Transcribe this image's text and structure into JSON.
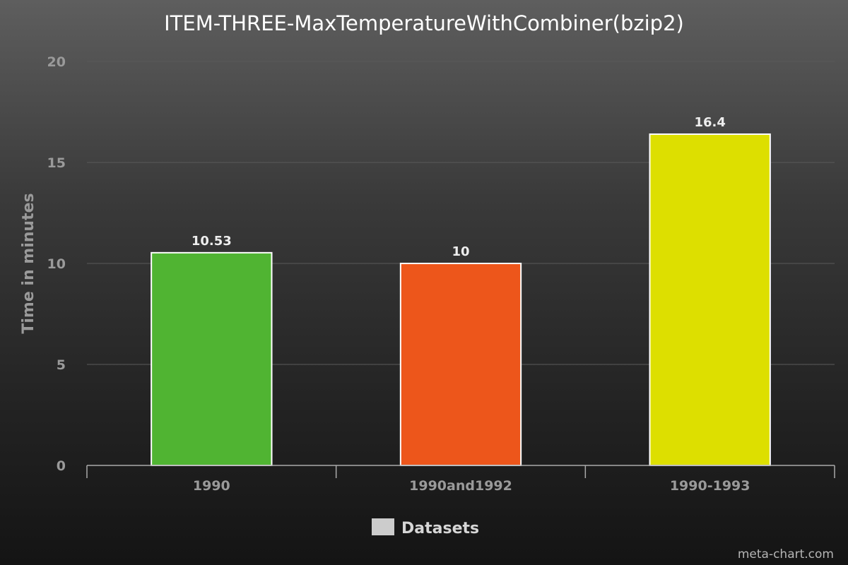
{
  "chart_data": {
    "type": "bar",
    "title": "ITEM-THREE-MaxTemperatureWithCombiner(bzip2)",
    "xlabel": "",
    "ylabel": "Time in minutes",
    "categories": [
      "1990",
      "1990and1992",
      "1990-1993"
    ],
    "series": [
      {
        "name": "Datasets",
        "values": [
          10.53,
          10,
          16.4
        ]
      }
    ],
    "data_labels": [
      "10.53",
      "10",
      "16.4"
    ],
    "bar_colors": [
      "#50b432",
      "#ed561b",
      "#dddf00"
    ],
    "ylim": [
      0,
      20
    ],
    "yticks": [
      0,
      5,
      10,
      15,
      20
    ],
    "grid": true,
    "legend_position": "bottom-center",
    "legend_swatch_color": "#cccccc"
  },
  "credit": "meta-chart.com"
}
